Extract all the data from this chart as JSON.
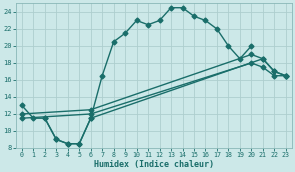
{
  "xlabel": "Humidex (Indice chaleur)",
  "bg_color": "#cce8e8",
  "line_color": "#1a6e6a",
  "grid_color": "#b0d4d4",
  "xlim": [
    -0.5,
    23.5
  ],
  "ylim": [
    8,
    25
  ],
  "xticks": [
    0,
    1,
    2,
    3,
    4,
    5,
    6,
    7,
    8,
    9,
    10,
    11,
    12,
    13,
    14,
    15,
    16,
    17,
    18,
    19,
    20,
    21,
    22,
    23
  ],
  "yticks": [
    8,
    10,
    12,
    14,
    16,
    18,
    20,
    22,
    24
  ],
  "curve1_x": [
    0,
    1,
    2,
    3,
    4,
    5,
    6,
    7,
    8,
    9,
    10,
    11,
    12,
    13,
    14,
    15,
    16,
    17,
    18,
    19,
    20
  ],
  "curve1_y": [
    13,
    11.5,
    11.5,
    9,
    8.5,
    8.5,
    11.5,
    16.5,
    20.5,
    21.5,
    23,
    22.5,
    23,
    24.5,
    24.5,
    23.5,
    23,
    22,
    20,
    18.5,
    20
  ],
  "curve2_x": [
    2,
    3,
    4,
    5,
    6,
    21,
    22,
    23
  ],
  "curve2_y": [
    11.5,
    9,
    8.5,
    8.5,
    11.5,
    18.5,
    17,
    16.5
  ],
  "line1_x": [
    0,
    6,
    20,
    21,
    22,
    23
  ],
  "line1_y": [
    12,
    12.5,
    19,
    18.5,
    17,
    16.5
  ],
  "line2_x": [
    0,
    6,
    20,
    21,
    22,
    23
  ],
  "line2_y": [
    11.5,
    12,
    18,
    17.5,
    16.5,
    16.5
  ],
  "marker": "D",
  "marker_size": 2.5,
  "line_width": 1.0
}
